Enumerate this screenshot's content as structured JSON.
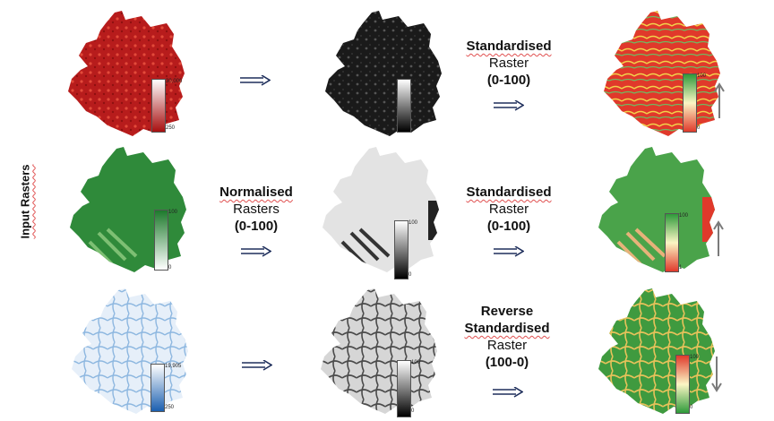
{
  "side_label": "Input Rasters",
  "rows": [
    {
      "input_legend": {
        "max": "30,006",
        "min": "250"
      },
      "normalised_legend": {
        "max": "100",
        "min": "0"
      },
      "method": {
        "line1": "",
        "line2": "",
        "line3": ""
      },
      "standard": {
        "line1": "Standardised",
        "line2": "Raster",
        "line3": "(0-100)"
      },
      "output_legend": {
        "max": "100",
        "min": "0"
      },
      "direction": "up"
    },
    {
      "input_legend": {
        "max": "100",
        "min": "0"
      },
      "normalised_legend": {
        "max": "100",
        "min": "0"
      },
      "method": {
        "line1": "Normalised",
        "line2": "Rasters",
        "line3": "(0-100)"
      },
      "standard": {
        "line1": "Standardised",
        "line2": "Raster",
        "line3": "(0-100)"
      },
      "output_legend": {
        "max": "100",
        "min": "1"
      },
      "direction": "up"
    },
    {
      "input_legend": {
        "max": "19,905",
        "min": "250"
      },
      "normalised_legend": {
        "max": "100",
        "min": "0"
      },
      "method": {
        "line1": "",
        "line2": "",
        "line3": ""
      },
      "standard": {
        "line1": "Reverse",
        "line2": "Standardised",
        "line3": "Raster",
        "line4": "(100-0)"
      },
      "output_legend": {
        "max": "100",
        "min": "0"
      },
      "direction": "down"
    }
  ],
  "colors": {
    "row1_input": "#b11d1d",
    "row2_input": "#2f8a3a",
    "row3_input": "#d6e6f6",
    "normalised_dark": "#1a1a1a",
    "normalised_light": "#e0e0e0",
    "output_red": "#e0392b",
    "output_green": "#4aa34a",
    "arrow": "#1f2f5c",
    "direction_arrow": "#7a7a7a"
  }
}
